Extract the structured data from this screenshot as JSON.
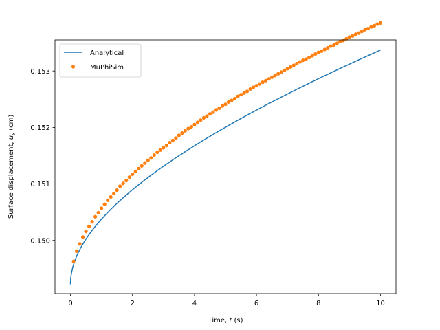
{
  "chart_data": {
    "type": "line",
    "xlabel_prefix": "Time, ",
    "xlabel_var": "t",
    "xlabel_suffix": " (s)",
    "ylabel_prefix": "Surface displacement, ",
    "ylabel_var": "u",
    "ylabel_sub": "s",
    "ylabel_suffix": " (cm)",
    "xlim": [
      -0.5,
      10.5
    ],
    "ylim": [
      0.14906,
      0.15355
    ],
    "xticks": [
      0,
      2,
      4,
      6,
      8,
      10
    ],
    "xtick_labels": [
      "0",
      "2",
      "4",
      "6",
      "8",
      "10"
    ],
    "yticks": [
      0.15,
      0.151,
      0.152,
      0.153
    ],
    "ytick_labels": [
      "0.150",
      "0.151",
      "0.152",
      "0.153"
    ],
    "grid": false,
    "legend_position": "top-left",
    "series": [
      {
        "name": "Analytical",
        "kind": "line",
        "color": "#1f77b4",
        "model": {
          "form": "y = a + b * t^0.5 + c * t",
          "a": 0.149225,
          "b": 0.0010775,
          "c": 7.38e-05,
          "t_start": 0,
          "t_end": 10
        }
      },
      {
        "name": "MuPhiSim",
        "kind": "scatter",
        "color": "#ff7f0e",
        "x": [
          0.1,
          0.2,
          0.3,
          0.4,
          0.5,
          0.6,
          0.7,
          0.8,
          0.9,
          1.0,
          1.1,
          1.2,
          1.3,
          1.4,
          1.5,
          1.6,
          1.7,
          1.8,
          1.9,
          2.0,
          2.1,
          2.2,
          2.3,
          2.4,
          2.5,
          2.6,
          2.7,
          2.8,
          2.9,
          3.0,
          3.1,
          3.2,
          3.3,
          3.4,
          3.5,
          3.6,
          3.7,
          3.8,
          3.9,
          4.0,
          4.1,
          4.2,
          4.3,
          4.4,
          4.5,
          4.6,
          4.7,
          4.8,
          4.9,
          5.0,
          5.1,
          5.2,
          5.3,
          5.4,
          5.5,
          5.6,
          5.7,
          5.8,
          5.9,
          6.0,
          6.1,
          6.2,
          6.3,
          6.4,
          6.5,
          6.6,
          6.7,
          6.8,
          6.9,
          7.0,
          7.1,
          7.2,
          7.3,
          7.4,
          7.5,
          7.6,
          7.7,
          7.8,
          7.9,
          8.0,
          8.1,
          8.2,
          8.3,
          8.4,
          8.5,
          8.6,
          8.7,
          8.8,
          8.9,
          9.0,
          9.1,
          9.2,
          9.3,
          9.4,
          9.5,
          9.6,
          9.7,
          9.8,
          9.9,
          10.0
        ],
        "y": [
          0.14963,
          0.14981,
          0.14994,
          0.15006,
          0.15016,
          0.15025,
          0.15033,
          0.15042,
          0.15049,
          0.15057,
          0.15064,
          0.15071,
          0.15077,
          0.15083,
          0.15089,
          0.15096,
          0.15101,
          0.15106,
          0.15112,
          0.15117,
          0.15122,
          0.15127,
          0.15132,
          0.15137,
          0.15142,
          0.15146,
          0.15151,
          0.15156,
          0.1516,
          0.15164,
          0.15168,
          0.15173,
          0.15177,
          0.15181,
          0.15186,
          0.1519,
          0.15194,
          0.15198,
          0.15201,
          0.15205,
          0.15209,
          0.15213,
          0.15217,
          0.1522,
          0.15224,
          0.15227,
          0.15231,
          0.15234,
          0.15238,
          0.15241,
          0.15245,
          0.15248,
          0.15251,
          0.15255,
          0.15258,
          0.15261,
          0.15264,
          0.15268,
          0.15271,
          0.15274,
          0.15277,
          0.1528,
          0.15283,
          0.15286,
          0.15289,
          0.15292,
          0.15295,
          0.15298,
          0.15301,
          0.15304,
          0.15307,
          0.1531,
          0.15313,
          0.15316,
          0.15319,
          0.15321,
          0.15324,
          0.15327,
          0.1533,
          0.15333,
          0.15335,
          0.15338,
          0.15341,
          0.15344,
          0.15346,
          0.15349,
          0.15352,
          0.15354,
          0.15357,
          0.1536,
          0.15362,
          0.15365,
          0.15367,
          0.1537,
          0.15373,
          0.15375,
          0.15378,
          0.1538,
          0.15383,
          0.15385
        ]
      }
    ]
  }
}
